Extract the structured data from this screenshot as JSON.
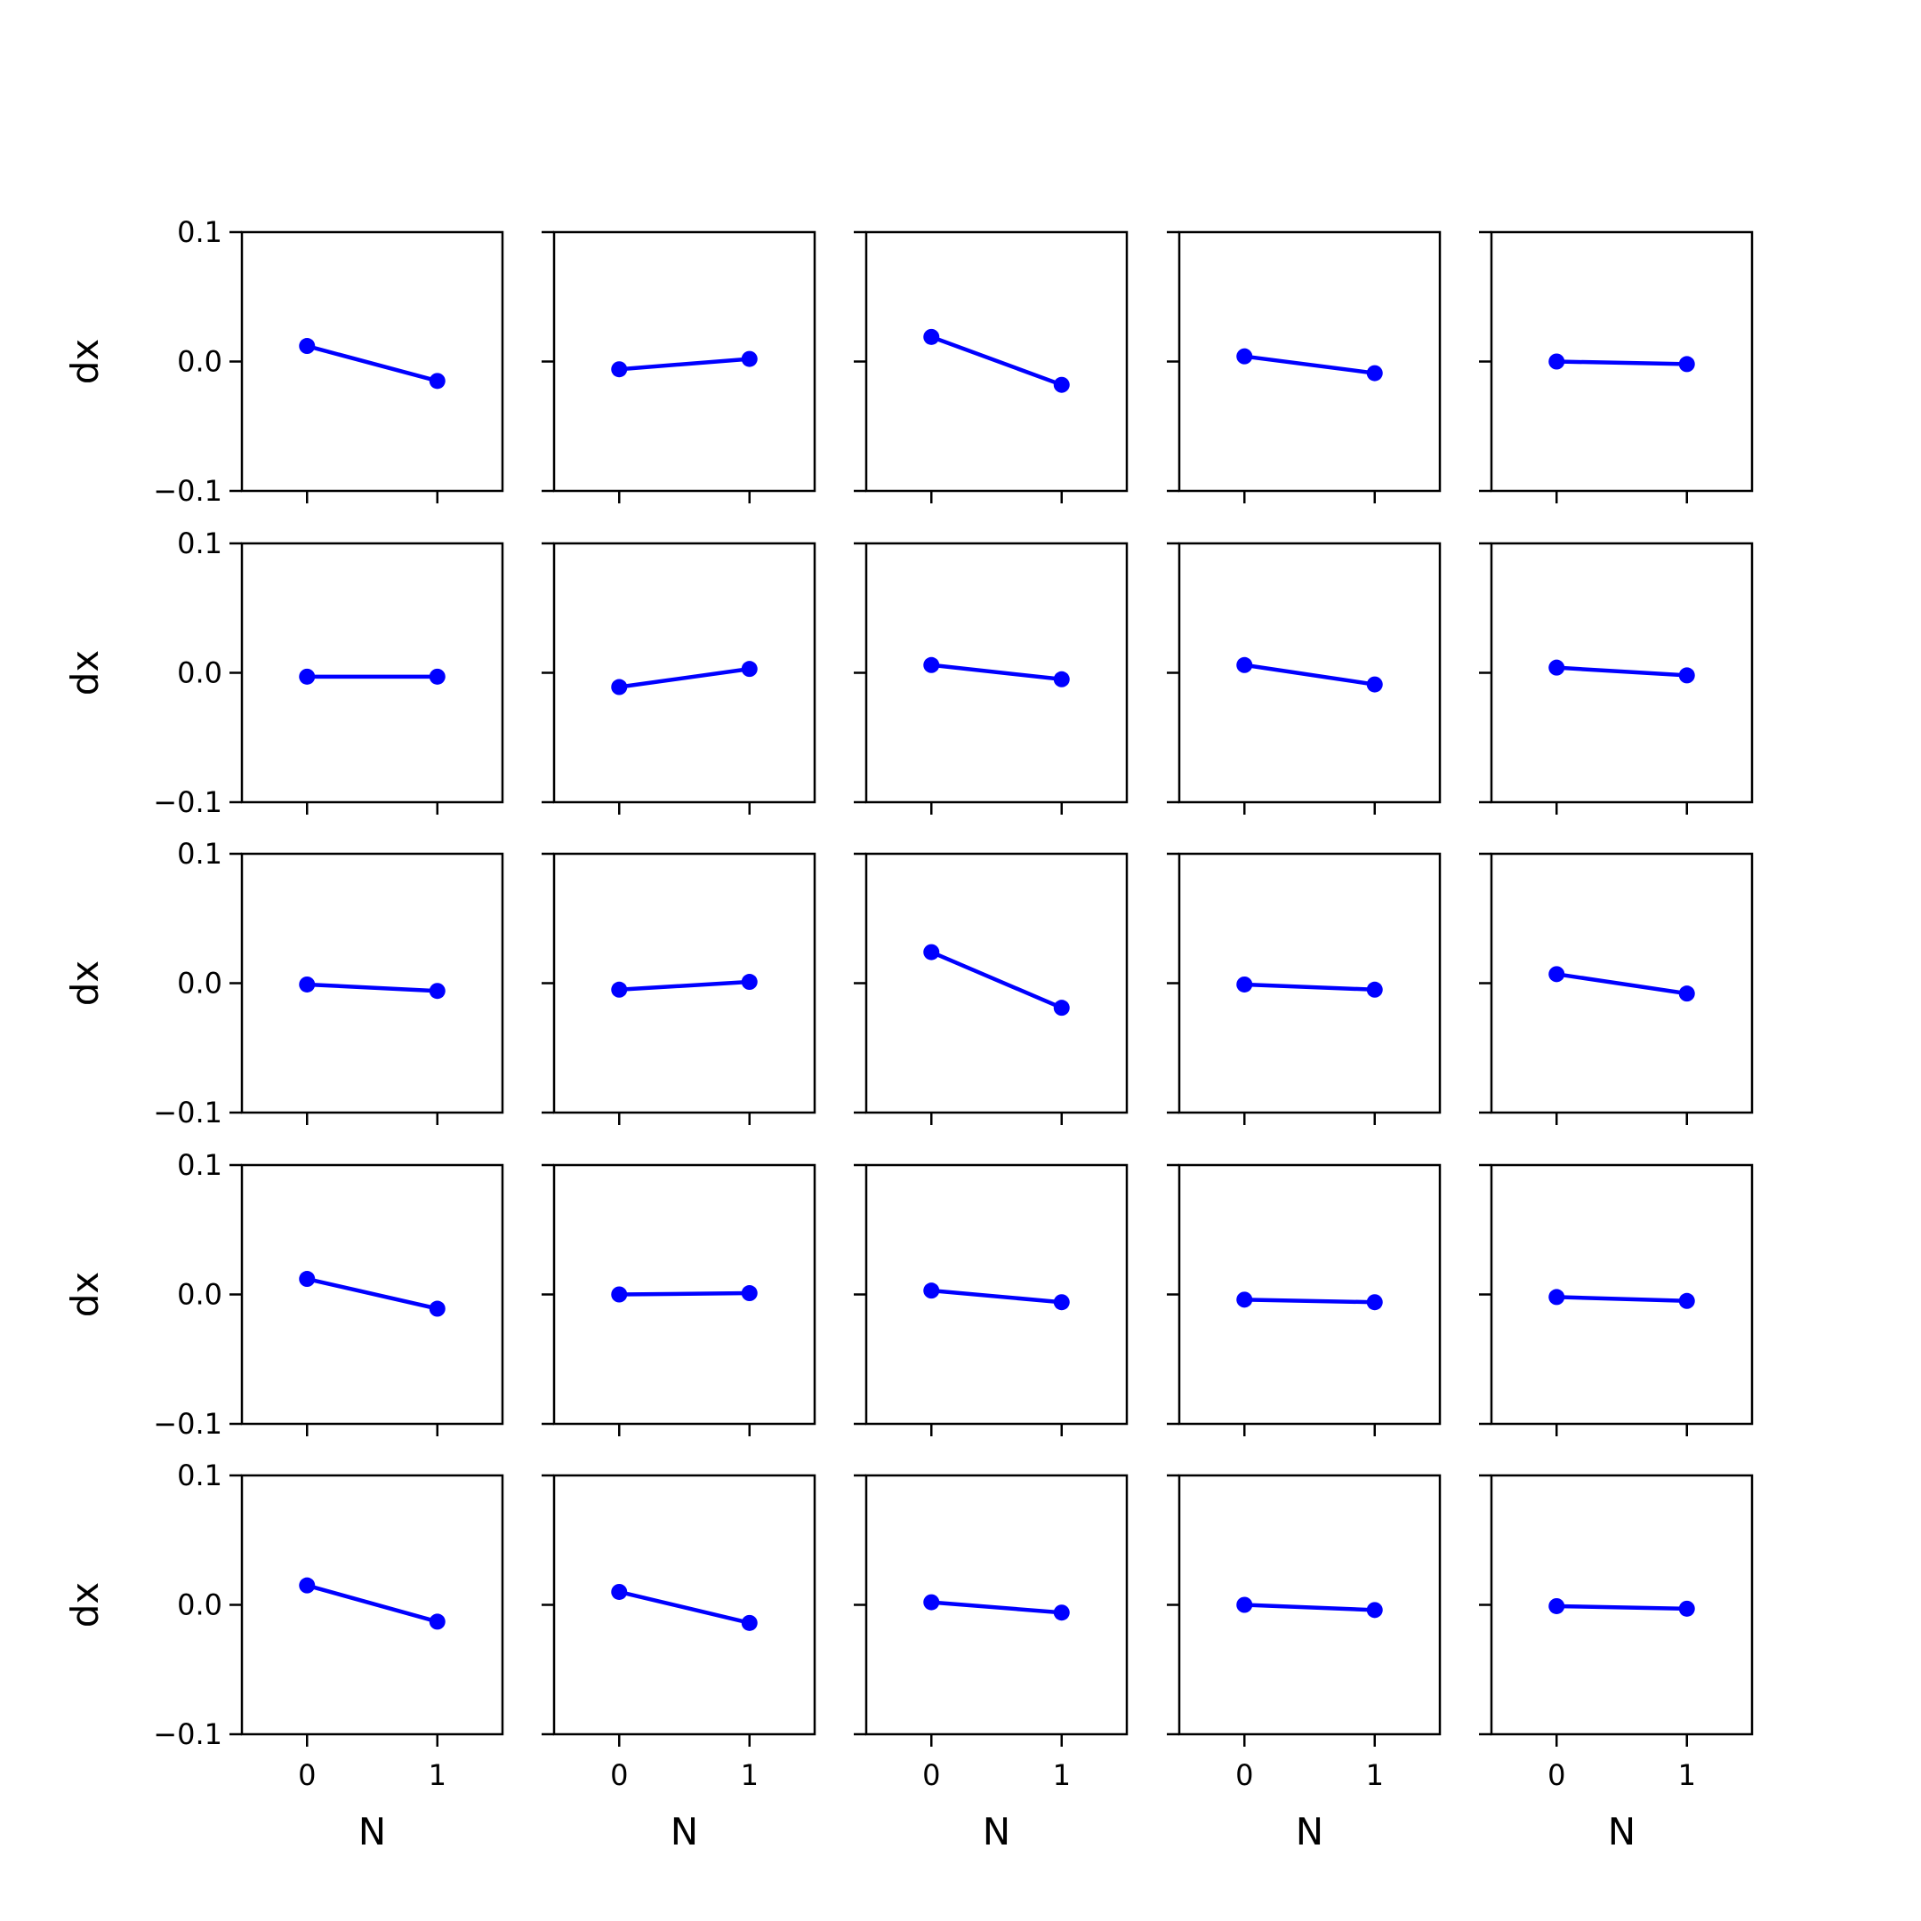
{
  "figure": {
    "rows": 5,
    "cols": 5,
    "sharex": true,
    "sharey": true,
    "series_color": "#0000ff",
    "axis_color": "#000000",
    "background": "#ffffff"
  },
  "chart_data": {
    "type": "line",
    "marker": "circle",
    "x": [
      0,
      1
    ],
    "xlim": [
      -0.5,
      1.5
    ],
    "ylim": [
      -0.1,
      0.1
    ],
    "xticks": [
      0,
      1
    ],
    "xtick_labels": [
      "0",
      "1"
    ],
    "yticks": [
      -0.1,
      0.0,
      0.1
    ],
    "ytick_labels": [
      "−0.1",
      "0.0",
      "0.1"
    ],
    "xlabel": "N",
    "ylabel": "dx",
    "grid": false,
    "panels": [
      [
        0.012,
        -0.015
      ],
      [
        -0.006,
        0.002
      ],
      [
        0.019,
        -0.018
      ],
      [
        0.004,
        -0.009
      ],
      [
        0.0,
        -0.002
      ],
      [
        -0.003,
        -0.003
      ],
      [
        -0.011,
        0.003
      ],
      [
        0.006,
        -0.005
      ],
      [
        0.006,
        -0.009
      ],
      [
        0.004,
        -0.002
      ],
      [
        -0.001,
        -0.006
      ],
      [
        -0.005,
        0.001
      ],
      [
        0.024,
        -0.019
      ],
      [
        -0.001,
        -0.005
      ],
      [
        0.007,
        -0.008
      ],
      [
        0.012,
        -0.011
      ],
      [
        0.0,
        0.001
      ],
      [
        0.003,
        -0.006
      ],
      [
        -0.004,
        -0.006
      ],
      [
        -0.002,
        -0.005
      ],
      [
        0.015,
        -0.013
      ],
      [
        0.01,
        -0.014
      ],
      [
        0.002,
        -0.006
      ],
      [
        0.0,
        -0.004
      ],
      [
        -0.001,
        -0.003
      ]
    ]
  }
}
